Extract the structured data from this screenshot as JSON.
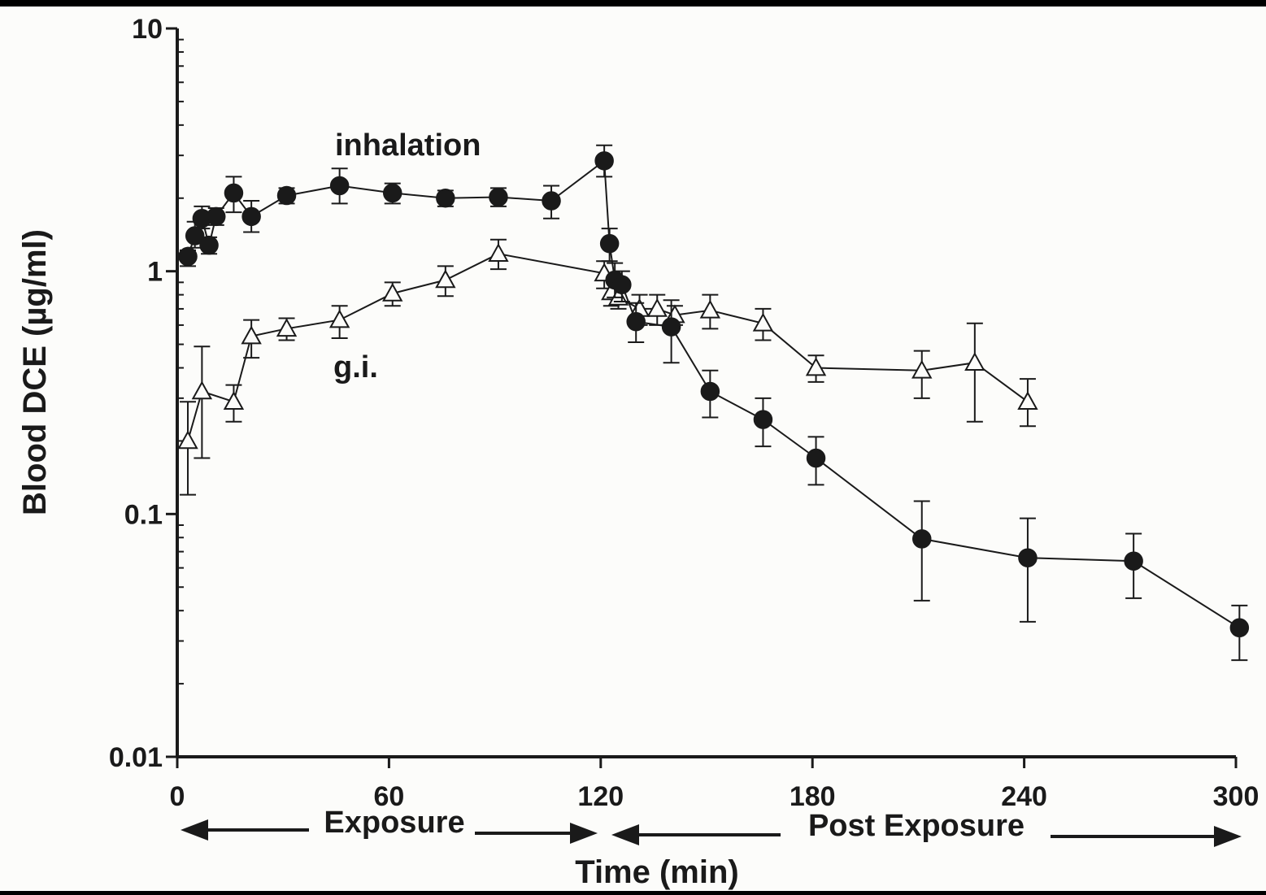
{
  "chart_data": {
    "type": "scatter",
    "title": "",
    "xlabel": "Time (min)",
    "ylabel": "Blood  DCE (µg/ml)",
    "xlim": [
      0,
      300
    ],
    "ylim": [
      0.01,
      10
    ],
    "yscale": "log",
    "grid": false,
    "x_ticks": [
      0,
      60,
      120,
      180,
      240,
      300
    ],
    "x_tick_labels": [
      "0",
      "60",
      "120",
      "180",
      "240",
      "300"
    ],
    "y_ticks": [
      0.01,
      0.1,
      1,
      10
    ],
    "y_tick_labels": [
      "0.01",
      "0.1",
      "1",
      "10"
    ],
    "series": [
      {
        "name": "inhalation",
        "marker": "filled-circle",
        "color": "#1a1a1a",
        "points": [
          {
            "x": 3,
            "y": 1.15,
            "lo": 1.05,
            "hi": 1.22
          },
          {
            "x": 5,
            "y": 1.4,
            "lo": 1.25,
            "hi": 1.6
          },
          {
            "x": 7,
            "y": 1.65,
            "lo": 1.5,
            "hi": 1.85
          },
          {
            "x": 9,
            "y": 1.28,
            "lo": 1.18,
            "hi": 1.38
          },
          {
            "x": 11,
            "y": 1.68,
            "lo": 1.55,
            "hi": 1.82
          },
          {
            "x": 16,
            "y": 2.1,
            "lo": 1.75,
            "hi": 2.45
          },
          {
            "x": 21,
            "y": 1.68,
            "lo": 1.45,
            "hi": 1.95
          },
          {
            "x": 31,
            "y": 2.05,
            "lo": 1.9,
            "hi": 2.2
          },
          {
            "x": 46,
            "y": 2.25,
            "lo": 1.9,
            "hi": 2.65
          },
          {
            "x": 61,
            "y": 2.1,
            "lo": 1.9,
            "hi": 2.3
          },
          {
            "x": 76,
            "y": 2.0,
            "lo": 1.85,
            "hi": 2.15
          },
          {
            "x": 91,
            "y": 2.02,
            "lo": 1.85,
            "hi": 2.2
          },
          {
            "x": 106,
            "y": 1.95,
            "lo": 1.65,
            "hi": 2.25
          },
          {
            "x": 121,
            "y": 2.85,
            "lo": 2.45,
            "hi": 3.3
          },
          {
            "x": 122.5,
            "y": 1.3,
            "lo": 1.1,
            "hi": 1.5
          },
          {
            "x": 124,
            "y": 0.92,
            "lo": 0.78,
            "hi": 1.08
          },
          {
            "x": 126,
            "y": 0.88,
            "lo": 0.75,
            "hi": 1.0
          },
          {
            "x": 130,
            "y": 0.62,
            "lo": 0.51,
            "hi": 0.74
          },
          {
            "x": 140,
            "y": 0.59,
            "lo": 0.42,
            "hi": 0.76
          },
          {
            "x": 151,
            "y": 0.32,
            "lo": 0.25,
            "hi": 0.39
          },
          {
            "x": 166,
            "y": 0.245,
            "lo": 0.19,
            "hi": 0.3
          },
          {
            "x": 181,
            "y": 0.17,
            "lo": 0.132,
            "hi": 0.208
          },
          {
            "x": 211,
            "y": 0.079,
            "lo": 0.044,
            "hi": 0.113
          },
          {
            "x": 241,
            "y": 0.066,
            "lo": 0.036,
            "hi": 0.096
          },
          {
            "x": 271,
            "y": 0.064,
            "lo": 0.045,
            "hi": 0.083
          },
          {
            "x": 301,
            "y": 0.034,
            "lo": 0.025,
            "hi": 0.042
          }
        ]
      },
      {
        "name": "g.i.",
        "marker": "open-triangle",
        "color": "#1a1a1a",
        "points": [
          {
            "x": 3,
            "y": 0.2,
            "lo": 0.12,
            "hi": 0.29
          },
          {
            "x": 7,
            "y": 0.32,
            "lo": 0.17,
            "hi": 0.49
          },
          {
            "x": 16,
            "y": 0.29,
            "lo": 0.24,
            "hi": 0.34
          },
          {
            "x": 21,
            "y": 0.54,
            "lo": 0.44,
            "hi": 0.63
          },
          {
            "x": 31,
            "y": 0.58,
            "lo": 0.52,
            "hi": 0.64
          },
          {
            "x": 46,
            "y": 0.63,
            "lo": 0.53,
            "hi": 0.72
          },
          {
            "x": 61,
            "y": 0.81,
            "lo": 0.72,
            "hi": 0.9
          },
          {
            "x": 76,
            "y": 0.92,
            "lo": 0.79,
            "hi": 1.05
          },
          {
            "x": 91,
            "y": 1.18,
            "lo": 1.02,
            "hi": 1.35
          },
          {
            "x": 121,
            "y": 0.98,
            "lo": 0.85,
            "hi": 1.1
          },
          {
            "x": 123,
            "y": 0.82,
            "lo": 0.72,
            "hi": 0.92
          },
          {
            "x": 125,
            "y": 0.78,
            "lo": 0.7,
            "hi": 0.86
          },
          {
            "x": 131,
            "y": 0.7,
            "lo": 0.6,
            "hi": 0.8
          },
          {
            "x": 136,
            "y": 0.7,
            "lo": 0.6,
            "hi": 0.8
          },
          {
            "x": 141,
            "y": 0.66,
            "lo": 0.6,
            "hi": 0.72
          },
          {
            "x": 151,
            "y": 0.69,
            "lo": 0.58,
            "hi": 0.8
          },
          {
            "x": 166,
            "y": 0.61,
            "lo": 0.52,
            "hi": 0.7
          },
          {
            "x": 181,
            "y": 0.4,
            "lo": 0.35,
            "hi": 0.45
          },
          {
            "x": 211,
            "y": 0.39,
            "lo": 0.3,
            "hi": 0.47
          },
          {
            "x": 226,
            "y": 0.42,
            "lo": 0.24,
            "hi": 0.61
          },
          {
            "x": 241,
            "y": 0.29,
            "lo": 0.23,
            "hi": 0.36
          }
        ]
      }
    ],
    "annotations": {
      "exposure_label": "Exposure",
      "post_exposure_label": "Post Exposure"
    }
  }
}
